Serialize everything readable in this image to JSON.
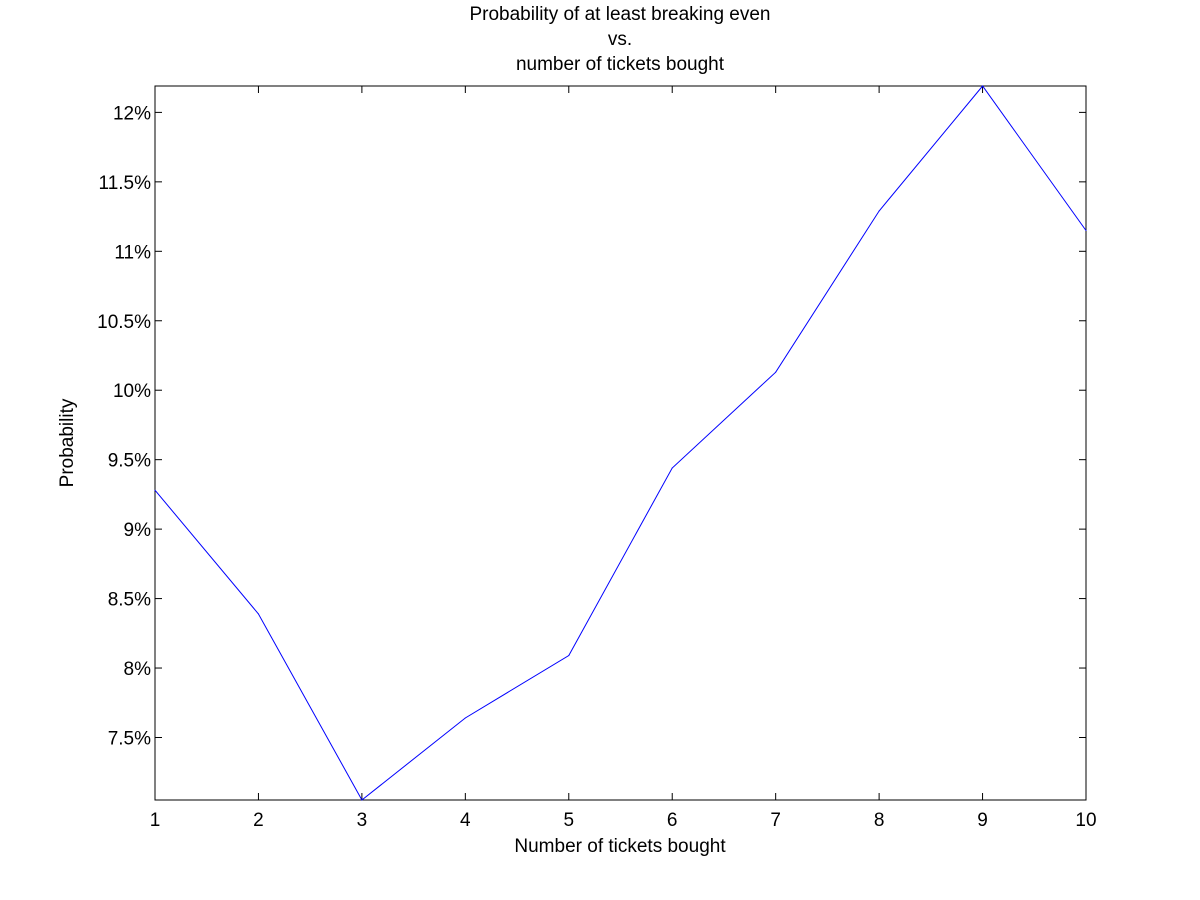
{
  "chart_data": {
    "type": "line",
    "title": [
      "Probability of at least breaking even",
      "vs.",
      "number of tickets bought"
    ],
    "xlabel": "Number of tickets bought",
    "ylabel": "Probability",
    "x": [
      1,
      2,
      3,
      4,
      5,
      6,
      7,
      8,
      9,
      10
    ],
    "series": [
      {
        "values": [
          9.28,
          8.39,
          7.05,
          7.64,
          8.09,
          9.44,
          10.13,
          11.29,
          12.19,
          11.15
        ]
      }
    ],
    "xlim": [
      1,
      10
    ],
    "ylim": [
      7.05,
      12.19
    ],
    "xticks": [
      1,
      2,
      3,
      4,
      5,
      6,
      7,
      8,
      9,
      10
    ],
    "xtick_labels": [
      "1",
      "2",
      "3",
      "4",
      "5",
      "6",
      "7",
      "8",
      "9",
      "10"
    ],
    "yticks": [
      7.5,
      8,
      8.5,
      9,
      9.5,
      10,
      10.5,
      11,
      11.5,
      12
    ],
    "ytick_labels": [
      "7.5%",
      "8%",
      "8.5%",
      "9%",
      "9.5%",
      "10%",
      "10.5%",
      "11%",
      "11.5%",
      "12%"
    ],
    "grid": false,
    "line_color": "#0000ff"
  }
}
